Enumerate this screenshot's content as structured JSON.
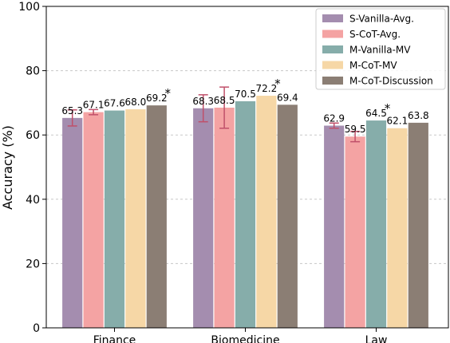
{
  "chart_data": {
    "type": "bar",
    "categories": [
      "Finance",
      "Biomedicine",
      "Law"
    ],
    "series": [
      {
        "name": "S-Vanilla-Avg.",
        "color": "#a48daf",
        "values": [
          65.3,
          68.3,
          62.9
        ],
        "error": [
          2.5,
          4.2,
          0.8
        ]
      },
      {
        "name": "S-CoT-Avg.",
        "color": "#f4a3a3",
        "values": [
          67.1,
          68.5,
          59.5
        ],
        "error": [
          0.8,
          6.4,
          1.6
        ]
      },
      {
        "name": "M-Vanilla-MV",
        "color": "#86adaa",
        "values": [
          67.6,
          70.5,
          64.5
        ],
        "error": null
      },
      {
        "name": "M-CoT-MV",
        "color": "#f6d7a6",
        "values": [
          68.0,
          72.2,
          62.1
        ],
        "error": null
      },
      {
        "name": "M-CoT-Discussion",
        "color": "#8b7e74",
        "values": [
          69.2,
          69.4,
          63.8
        ],
        "error": null
      }
    ],
    "data_labels": [
      [
        "65.3",
        "67.1",
        "67.6",
        "68.0",
        "69.2"
      ],
      [
        "68.3",
        "68.5",
        "70.5",
        "72.2",
        "69.4"
      ],
      [
        "62.9",
        "59.5",
        "64.5",
        "62.1",
        "63.8"
      ]
    ],
    "star_marks": [
      {
        "category": "Finance",
        "series": "M-CoT-Discussion",
        "symbol": "*"
      },
      {
        "category": "Biomedicine",
        "series": "M-CoT-MV",
        "symbol": "*"
      },
      {
        "category": "Law",
        "series": "M-Vanilla-MV",
        "symbol": "*"
      }
    ],
    "ylabel": "Accuracy (%)",
    "xlabel": "",
    "ylim": [
      0,
      100
    ],
    "yticks": [
      0,
      20,
      40,
      60,
      80,
      100
    ],
    "grid": "horizontal dashed",
    "legend_position": "top-right",
    "error_bar_color": "#c0506a"
  }
}
